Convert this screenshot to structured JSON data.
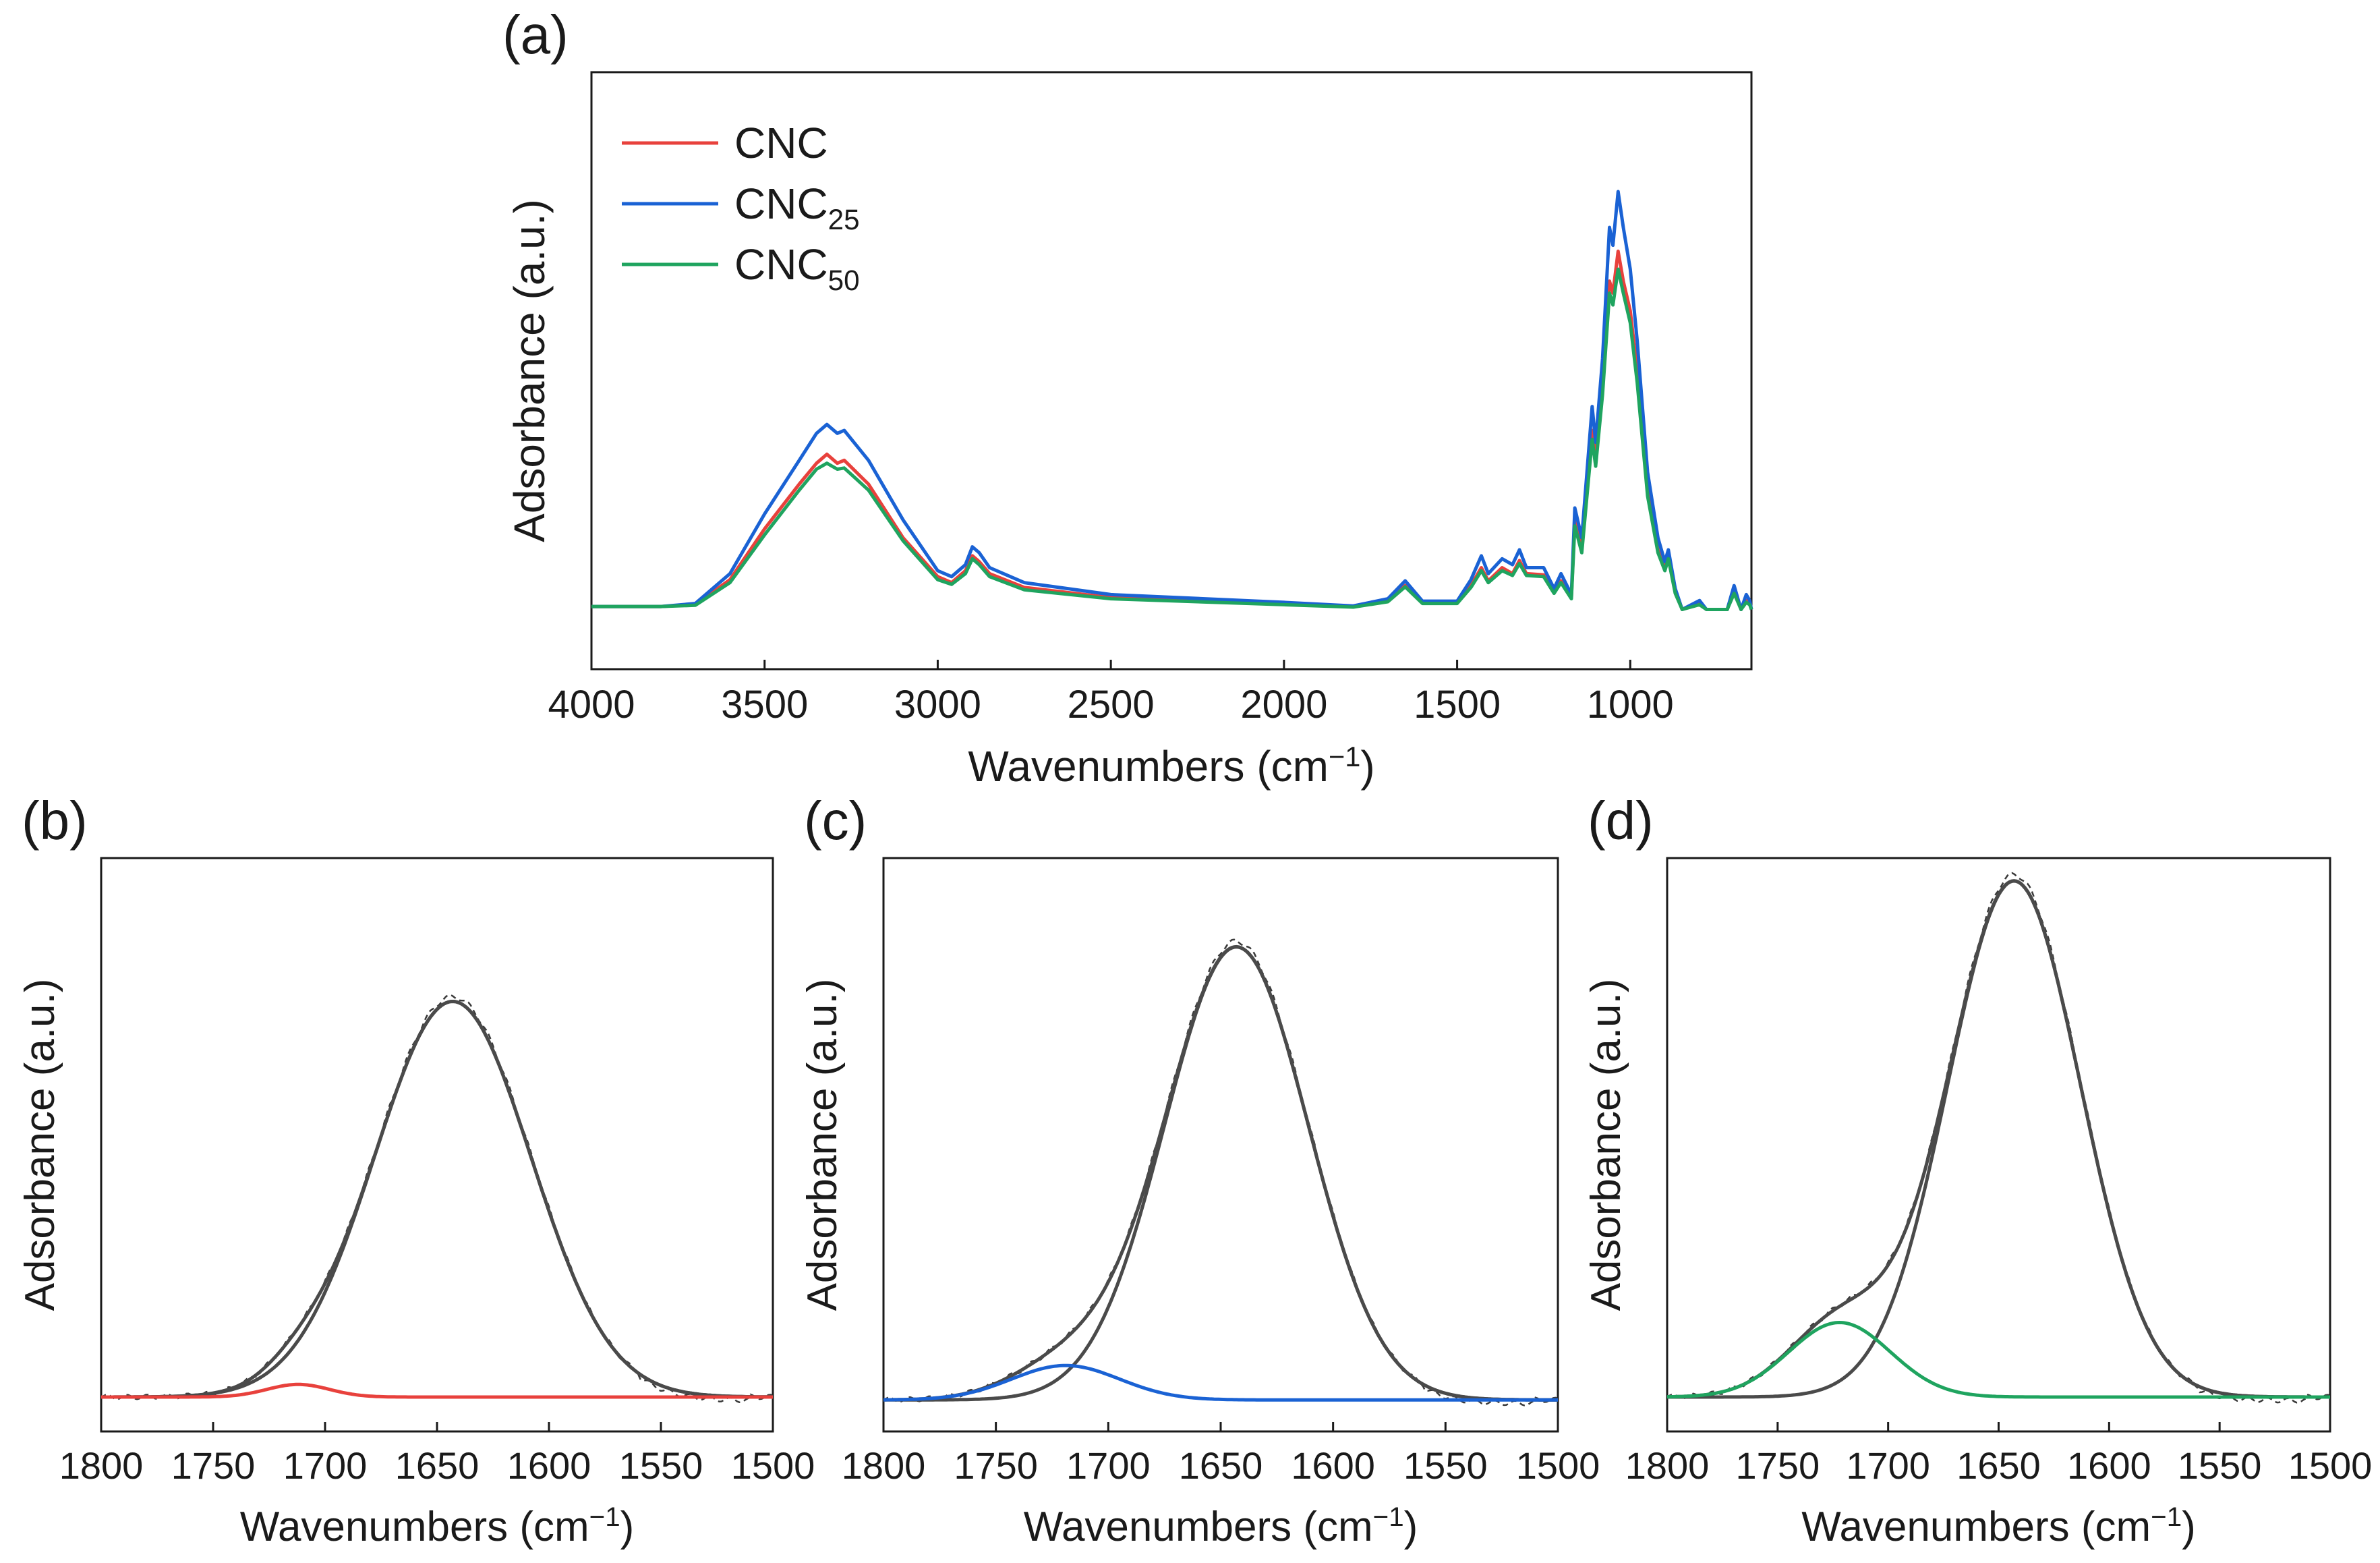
{
  "chart_data": [
    {
      "panel": "(a)",
      "type": "line",
      "xlabel": "Wavenumbers (cm",
      "xlabel_sup": "−1",
      "xlabel_end": ")",
      "ylabel": "Adsorbance (a.u.)",
      "xlim": [
        4000,
        650
      ],
      "ylim": [
        0,
        1
      ],
      "x_reversed": true,
      "xticks": [
        4000,
        3500,
        3000,
        2500,
        2000,
        1500,
        1000
      ],
      "yticks": [],
      "legend_position": "top-left",
      "series": [
        {
          "name": "CNC",
          "sub": "",
          "color": "#e8413c",
          "points": [
            [
              4000,
              0.105
            ],
            [
              3800,
              0.105
            ],
            [
              3700,
              0.108
            ],
            [
              3600,
              0.15
            ],
            [
              3500,
              0.235
            ],
            [
              3400,
              0.31
            ],
            [
              3350,
              0.345
            ],
            [
              3320,
              0.36
            ],
            [
              3290,
              0.345
            ],
            [
              3270,
              0.35
            ],
            [
              3200,
              0.31
            ],
            [
              3100,
              0.22
            ],
            [
              3000,
              0.155
            ],
            [
              2960,
              0.145
            ],
            [
              2920,
              0.165
            ],
            [
              2900,
              0.19
            ],
            [
              2880,
              0.18
            ],
            [
              2850,
              0.16
            ],
            [
              2750,
              0.137
            ],
            [
              2500,
              0.12
            ],
            [
              2000,
              0.11
            ],
            [
              1800,
              0.105
            ],
            [
              1700,
              0.115
            ],
            [
              1650,
              0.14
            ],
            [
              1600,
              0.112
            ],
            [
              1500,
              0.112
            ],
            [
              1460,
              0.14
            ],
            [
              1430,
              0.17
            ],
            [
              1410,
              0.148
            ],
            [
              1370,
              0.17
            ],
            [
              1340,
              0.16
            ],
            [
              1320,
              0.182
            ],
            [
              1300,
              0.16
            ],
            [
              1250,
              0.158
            ],
            [
              1220,
              0.13
            ],
            [
              1200,
              0.148
            ],
            [
              1170,
              0.12
            ],
            [
              1160,
              0.25
            ],
            [
              1140,
              0.2
            ],
            [
              1110,
              0.4
            ],
            [
              1100,
              0.35
            ],
            [
              1080,
              0.48
            ],
            [
              1060,
              0.65
            ],
            [
              1050,
              0.63
            ],
            [
              1035,
              0.7
            ],
            [
              1020,
              0.65
            ],
            [
              1000,
              0.6
            ],
            [
              980,
              0.5
            ],
            [
              950,
              0.3
            ],
            [
              920,
              0.2
            ],
            [
              900,
              0.17
            ],
            [
              890,
              0.19
            ],
            [
              870,
              0.13
            ],
            [
              850,
              0.1
            ],
            [
              800,
              0.11
            ],
            [
              780,
              0.1
            ],
            [
              720,
              0.1
            ],
            [
              700,
              0.13
            ],
            [
              680,
              0.1
            ],
            [
              665,
              0.115
            ],
            [
              655,
              0.11
            ],
            [
              650,
              0.1
            ]
          ]
        },
        {
          "name": "CNC",
          "sub": "25",
          "color": "#1a62d4",
          "points": [
            [
              4000,
              0.105
            ],
            [
              3800,
              0.105
            ],
            [
              3700,
              0.11
            ],
            [
              3600,
              0.16
            ],
            [
              3500,
              0.26
            ],
            [
              3400,
              0.35
            ],
            [
              3350,
              0.395
            ],
            [
              3320,
              0.41
            ],
            [
              3290,
              0.395
            ],
            [
              3270,
              0.4
            ],
            [
              3200,
              0.35
            ],
            [
              3100,
              0.25
            ],
            [
              3000,
              0.165
            ],
            [
              2960,
              0.155
            ],
            [
              2920,
              0.175
            ],
            [
              2900,
              0.205
            ],
            [
              2880,
              0.195
            ],
            [
              2850,
              0.17
            ],
            [
              2750,
              0.145
            ],
            [
              2500,
              0.125
            ],
            [
              2000,
              0.112
            ],
            [
              1800,
              0.106
            ],
            [
              1700,
              0.118
            ],
            [
              1650,
              0.148
            ],
            [
              1600,
              0.114
            ],
            [
              1500,
              0.114
            ],
            [
              1460,
              0.15
            ],
            [
              1430,
              0.19
            ],
            [
              1410,
              0.16
            ],
            [
              1370,
              0.185
            ],
            [
              1340,
              0.175
            ],
            [
              1320,
              0.2
            ],
            [
              1300,
              0.17
            ],
            [
              1250,
              0.17
            ],
            [
              1220,
              0.135
            ],
            [
              1200,
              0.16
            ],
            [
              1170,
              0.125
            ],
            [
              1160,
              0.27
            ],
            [
              1140,
              0.22
            ],
            [
              1110,
              0.44
            ],
            [
              1100,
              0.38
            ],
            [
              1080,
              0.52
            ],
            [
              1060,
              0.74
            ],
            [
              1050,
              0.71
            ],
            [
              1035,
              0.8
            ],
            [
              1020,
              0.74
            ],
            [
              1000,
              0.67
            ],
            [
              980,
              0.55
            ],
            [
              950,
              0.33
            ],
            [
              920,
              0.22
            ],
            [
              900,
              0.18
            ],
            [
              890,
              0.2
            ],
            [
              870,
              0.135
            ],
            [
              850,
              0.1
            ],
            [
              800,
              0.115
            ],
            [
              780,
              0.1
            ],
            [
              720,
              0.1
            ],
            [
              700,
              0.14
            ],
            [
              680,
              0.1
            ],
            [
              665,
              0.125
            ],
            [
              655,
              0.115
            ],
            [
              650,
              0.1
            ]
          ]
        },
        {
          "name": "CNC",
          "sub": "50",
          "color": "#1fa45f",
          "points": [
            [
              4000,
              0.105
            ],
            [
              3800,
              0.105
            ],
            [
              3700,
              0.107
            ],
            [
              3600,
              0.145
            ],
            [
              3500,
              0.225
            ],
            [
              3400,
              0.3
            ],
            [
              3350,
              0.335
            ],
            [
              3320,
              0.345
            ],
            [
              3290,
              0.335
            ],
            [
              3270,
              0.337
            ],
            [
              3200,
              0.3
            ],
            [
              3100,
              0.215
            ],
            [
              3000,
              0.15
            ],
            [
              2960,
              0.142
            ],
            [
              2920,
              0.16
            ],
            [
              2900,
              0.185
            ],
            [
              2880,
              0.175
            ],
            [
              2850,
              0.155
            ],
            [
              2750,
              0.133
            ],
            [
              2500,
              0.118
            ],
            [
              2000,
              0.108
            ],
            [
              1800,
              0.104
            ],
            [
              1700,
              0.113
            ],
            [
              1650,
              0.138
            ],
            [
              1600,
              0.11
            ],
            [
              1500,
              0.11
            ],
            [
              1460,
              0.137
            ],
            [
              1430,
              0.165
            ],
            [
              1410,
              0.145
            ],
            [
              1370,
              0.165
            ],
            [
              1340,
              0.157
            ],
            [
              1320,
              0.177
            ],
            [
              1300,
              0.157
            ],
            [
              1250,
              0.155
            ],
            [
              1220,
              0.127
            ],
            [
              1200,
              0.145
            ],
            [
              1170,
              0.118
            ],
            [
              1160,
              0.24
            ],
            [
              1140,
              0.195
            ],
            [
              1110,
              0.385
            ],
            [
              1100,
              0.34
            ],
            [
              1080,
              0.46
            ],
            [
              1060,
              0.63
            ],
            [
              1050,
              0.61
            ],
            [
              1035,
              0.67
            ],
            [
              1020,
              0.63
            ],
            [
              1000,
              0.58
            ],
            [
              980,
              0.48
            ],
            [
              950,
              0.29
            ],
            [
              920,
              0.195
            ],
            [
              900,
              0.165
            ],
            [
              890,
              0.185
            ],
            [
              870,
              0.127
            ],
            [
              850,
              0.1
            ],
            [
              800,
              0.108
            ],
            [
              780,
              0.1
            ],
            [
              720,
              0.1
            ],
            [
              700,
              0.127
            ],
            [
              680,
              0.1
            ],
            [
              665,
              0.112
            ],
            [
              655,
              0.108
            ],
            [
              650,
              0.1
            ]
          ]
        }
      ]
    },
    {
      "panel": "(b)",
      "type": "line",
      "xlabel": "Wavenumbers (cm",
      "xlabel_sup": "−1",
      "xlabel_end": ")",
      "ylabel": "Adsorbance (a.u.)",
      "xlim": [
        1800,
        1500
      ],
      "ylim": [
        0,
        1
      ],
      "x_reversed": true,
      "xticks": [
        1800,
        1750,
        1700,
        1650,
        1600,
        1550,
        1500
      ],
      "yticks": [],
      "baseline": 0.06,
      "main_peak": {
        "center": 1643,
        "height": 0.69,
        "sigma": 35,
        "color": "#4a4a4a"
      },
      "sub_peak": {
        "center": 1712,
        "height": 0.022,
        "sigma": 14,
        "color": "#e8413c"
      },
      "measured_offset": 0.012
    },
    {
      "panel": "(c)",
      "type": "line",
      "xlabel": "Wavenumbers (cm",
      "xlabel_sup": "−1",
      "xlabel_end": ")",
      "ylabel": "Adsorbance (a.u.)",
      "xlim": [
        1800,
        1500
      ],
      "ylim": [
        0,
        1
      ],
      "x_reversed": true,
      "xticks": [
        1800,
        1750,
        1700,
        1650,
        1600,
        1550,
        1500
      ],
      "yticks": [],
      "baseline": 0.055,
      "main_peak": {
        "center": 1643,
        "height": 0.79,
        "sigma": 32,
        "color": "#4a4a4a"
      },
      "sub_peak": {
        "center": 1719,
        "height": 0.06,
        "sigma": 24,
        "color": "#1a62d4"
      },
      "measured_offset": 0.012
    },
    {
      "panel": "(d)",
      "type": "line",
      "xlabel": "Wavenumbers (cm",
      "xlabel_sup": "−1",
      "xlabel_end": ")",
      "ylabel": "Adsorbance (a.u.)",
      "xlim": [
        1800,
        1500
      ],
      "ylim": [
        0,
        1
      ],
      "x_reversed": true,
      "xticks": [
        1800,
        1750,
        1700,
        1650,
        1600,
        1550,
        1500
      ],
      "yticks": [],
      "baseline": 0.06,
      "main_peak": {
        "center": 1643,
        "height": 0.9,
        "sigma": 30,
        "color": "#4a4a4a"
      },
      "sub_peak": {
        "center": 1722,
        "height": 0.13,
        "sigma": 23,
        "color": "#1fa45f"
      },
      "measured_offset": 0.012
    }
  ]
}
